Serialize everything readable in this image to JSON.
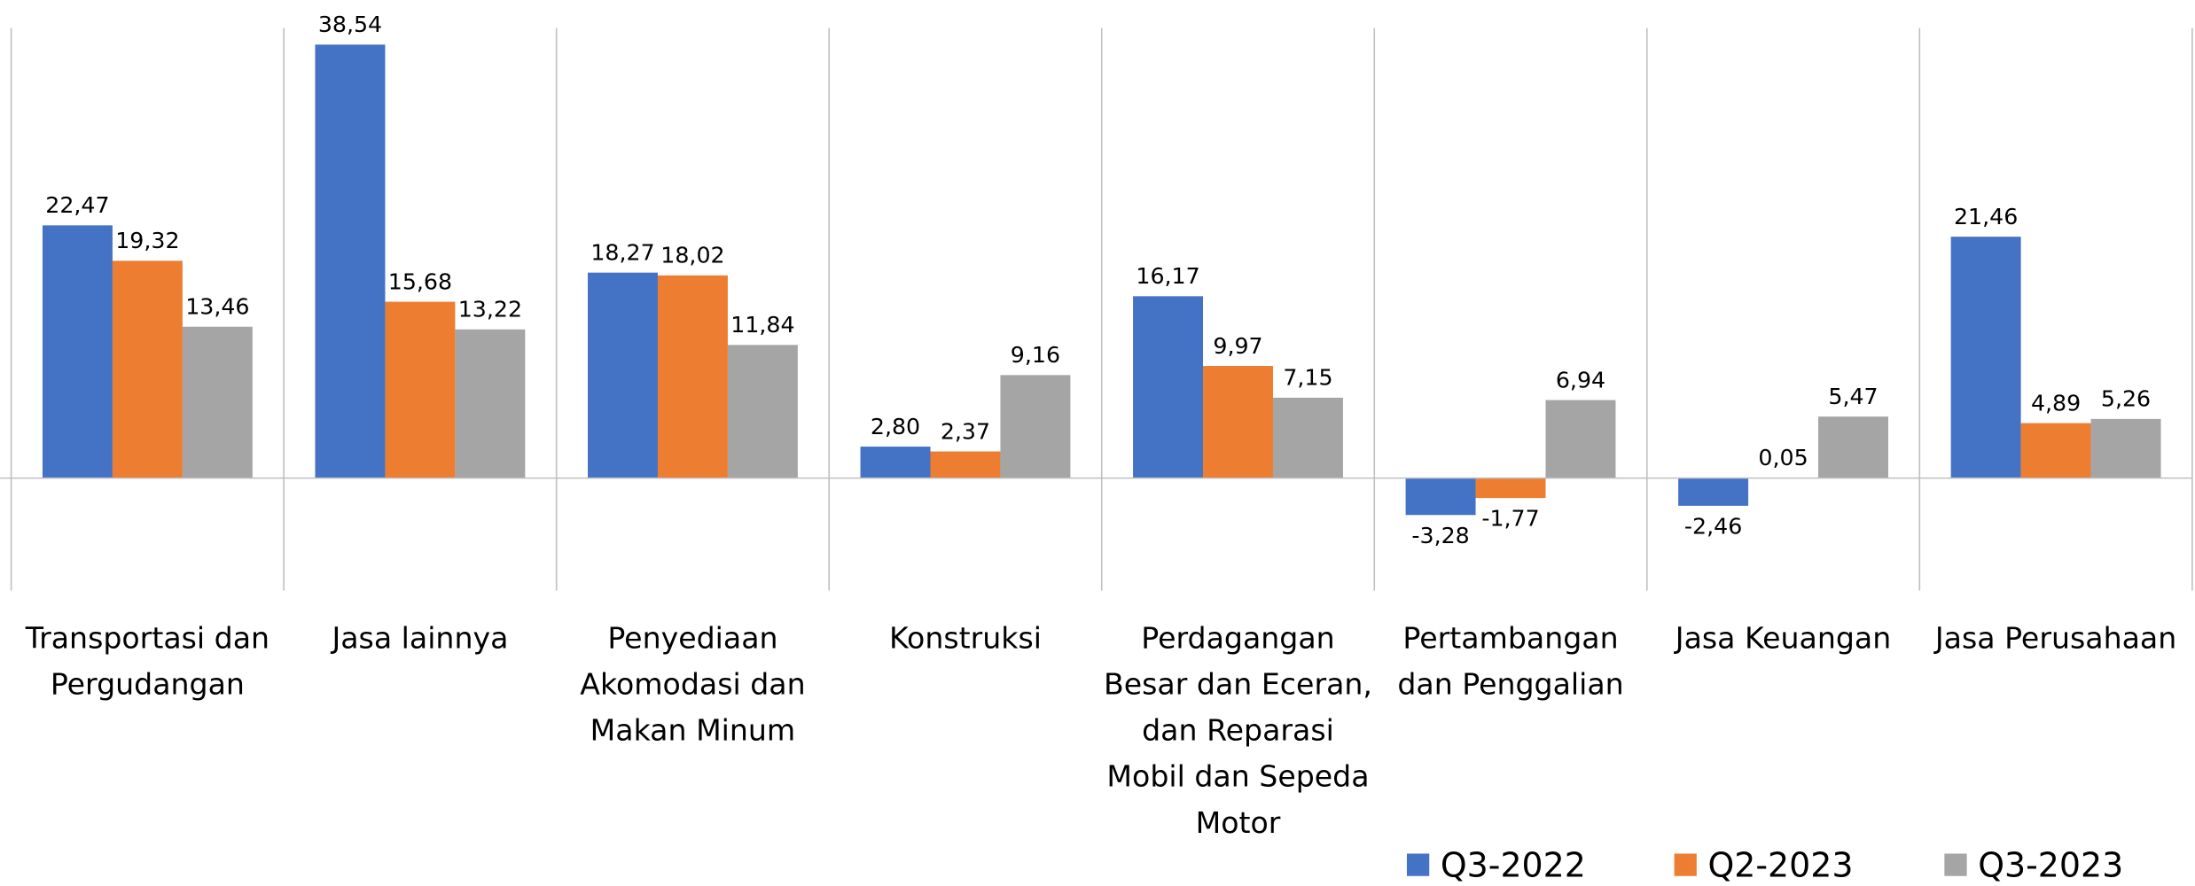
{
  "chart_data": {
    "type": "bar",
    "categories": [
      "Transportasi dan Pergudangan",
      "Jasa lainnya",
      "Penyediaan Akomodasi dan Makan Minum",
      "Konstruksi",
      "Perdagangan Besar dan Eceran, dan Reparasi Mobil dan Sepeda Motor",
      "Pertambangan dan Penggalian",
      "Jasa Keuangan",
      "Jasa Perusahaan"
    ],
    "series": [
      {
        "name": "Q3-2022",
        "color": "#4472c4",
        "values": [
          22.47,
          38.54,
          18.27,
          2.8,
          16.17,
          -3.28,
          -2.46,
          21.46
        ],
        "value_labels": [
          "22,47",
          "38,54",
          "18,27",
          "2,80",
          "16,17",
          "-3,28",
          "-2,46",
          "21,46"
        ]
      },
      {
        "name": "Q2-2023",
        "color": "#ed7d31",
        "values": [
          19.32,
          15.68,
          18.02,
          2.37,
          9.97,
          -1.77,
          0.05,
          4.89
        ],
        "value_labels": [
          "19,32",
          "15,68",
          "18,02",
          "2,37",
          "9,97",
          "-1,77",
          "0,05",
          "4,89"
        ]
      },
      {
        "name": "Q3-2023",
        "color": "#a5a5a5",
        "values": [
          13.46,
          13.22,
          11.84,
          9.16,
          7.15,
          6.94,
          5.47,
          5.26
        ],
        "value_labels": [
          "13,46",
          "13,22",
          "11,84",
          "9,16",
          "7,15",
          "6,94",
          "5,47",
          "5,26"
        ]
      }
    ],
    "ylim": [
      -10,
      40
    ],
    "legend": "bottom-right"
  }
}
